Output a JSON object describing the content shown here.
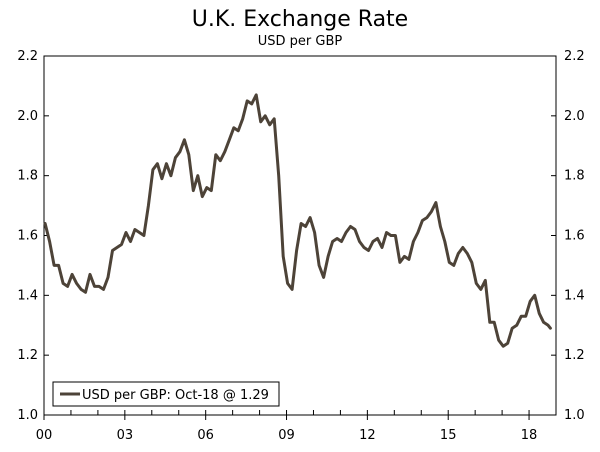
{
  "chart_data": {
    "type": "line",
    "title": "U.K. Exchange Rate",
    "subtitle": "USD per GBP",
    "xlabel": "",
    "ylabel": "",
    "x_tick_labels": [
      "00",
      "03",
      "06",
      "09",
      "12",
      "15",
      "18"
    ],
    "x_tick_years": [
      2000,
      2003,
      2006,
      2009,
      2012,
      2015,
      2018
    ],
    "xlim": [
      "2000-01",
      "2018-12"
    ],
    "ylim": [
      1.0,
      2.2
    ],
    "y_ticks": [
      1.0,
      1.2,
      1.4,
      1.6,
      1.8,
      2.0,
      2.2
    ],
    "y_tick_labels": [
      "1.0",
      "1.2",
      "1.4",
      "1.6",
      "1.8",
      "2.0",
      "2.2"
    ],
    "y_axis_both_sides": true,
    "grid": false,
    "legend_position": "bottom-left",
    "series": [
      {
        "name": "USD per GBP: Oct-18 @ 1.29",
        "color": "#4d4338",
        "points": [
          [
            "2000-01",
            1.64
          ],
          [
            "2000-03",
            1.58
          ],
          [
            "2000-05",
            1.5
          ],
          [
            "2000-07",
            1.5
          ],
          [
            "2000-09",
            1.44
          ],
          [
            "2000-11",
            1.43
          ],
          [
            "2001-01",
            1.47
          ],
          [
            "2001-03",
            1.44
          ],
          [
            "2001-05",
            1.42
          ],
          [
            "2001-07",
            1.41
          ],
          [
            "2001-09",
            1.47
          ],
          [
            "2001-11",
            1.43
          ],
          [
            "2002-01",
            1.43
          ],
          [
            "2002-03",
            1.42
          ],
          [
            "2002-05",
            1.46
          ],
          [
            "2002-07",
            1.55
          ],
          [
            "2002-09",
            1.56
          ],
          [
            "2002-11",
            1.57
          ],
          [
            "2003-01",
            1.61
          ],
          [
            "2003-03",
            1.58
          ],
          [
            "2003-05",
            1.62
          ],
          [
            "2003-07",
            1.61
          ],
          [
            "2003-09",
            1.6
          ],
          [
            "2003-11",
            1.7
          ],
          [
            "2004-01",
            1.82
          ],
          [
            "2004-03",
            1.84
          ],
          [
            "2004-05",
            1.79
          ],
          [
            "2004-07",
            1.84
          ],
          [
            "2004-09",
            1.8
          ],
          [
            "2004-11",
            1.86
          ],
          [
            "2005-01",
            1.88
          ],
          [
            "2005-03",
            1.92
          ],
          [
            "2005-05",
            1.87
          ],
          [
            "2005-07",
            1.75
          ],
          [
            "2005-09",
            1.8
          ],
          [
            "2005-11",
            1.73
          ],
          [
            "2006-01",
            1.76
          ],
          [
            "2006-03",
            1.75
          ],
          [
            "2006-05",
            1.87
          ],
          [
            "2006-07",
            1.85
          ],
          [
            "2006-09",
            1.88
          ],
          [
            "2006-11",
            1.92
          ],
          [
            "2007-01",
            1.96
          ],
          [
            "2007-03",
            1.95
          ],
          [
            "2007-05",
            1.99
          ],
          [
            "2007-07",
            2.05
          ],
          [
            "2007-09",
            2.04
          ],
          [
            "2007-11",
            2.07
          ],
          [
            "2008-01",
            1.98
          ],
          [
            "2008-03",
            2.0
          ],
          [
            "2008-05",
            1.97
          ],
          [
            "2008-07",
            1.99
          ],
          [
            "2008-09",
            1.8
          ],
          [
            "2008-11",
            1.53
          ],
          [
            "2009-01",
            1.44
          ],
          [
            "2009-03",
            1.42
          ],
          [
            "2009-05",
            1.55
          ],
          [
            "2009-07",
            1.64
          ],
          [
            "2009-09",
            1.63
          ],
          [
            "2009-11",
            1.66
          ],
          [
            "2010-01",
            1.61
          ],
          [
            "2010-03",
            1.5
          ],
          [
            "2010-05",
            1.46
          ],
          [
            "2010-07",
            1.53
          ],
          [
            "2010-09",
            1.58
          ],
          [
            "2010-11",
            1.59
          ],
          [
            "2011-01",
            1.58
          ],
          [
            "2011-03",
            1.61
          ],
          [
            "2011-05",
            1.63
          ],
          [
            "2011-07",
            1.62
          ],
          [
            "2011-09",
            1.58
          ],
          [
            "2011-11",
            1.56
          ],
          [
            "2012-01",
            1.55
          ],
          [
            "2012-03",
            1.58
          ],
          [
            "2012-05",
            1.59
          ],
          [
            "2012-07",
            1.56
          ],
          [
            "2012-09",
            1.61
          ],
          [
            "2012-11",
            1.6
          ],
          [
            "2013-01",
            1.6
          ],
          [
            "2013-03",
            1.51
          ],
          [
            "2013-05",
            1.53
          ],
          [
            "2013-07",
            1.52
          ],
          [
            "2013-09",
            1.58
          ],
          [
            "2013-11",
            1.61
          ],
          [
            "2014-01",
            1.65
          ],
          [
            "2014-03",
            1.66
          ],
          [
            "2014-05",
            1.68
          ],
          [
            "2014-07",
            1.71
          ],
          [
            "2014-09",
            1.63
          ],
          [
            "2014-11",
            1.58
          ],
          [
            "2015-01",
            1.51
          ],
          [
            "2015-03",
            1.5
          ],
          [
            "2015-05",
            1.54
          ],
          [
            "2015-07",
            1.56
          ],
          [
            "2015-09",
            1.54
          ],
          [
            "2015-11",
            1.51
          ],
          [
            "2016-01",
            1.44
          ],
          [
            "2016-03",
            1.42
          ],
          [
            "2016-05",
            1.45
          ],
          [
            "2016-07",
            1.31
          ],
          [
            "2016-09",
            1.31
          ],
          [
            "2016-11",
            1.25
          ],
          [
            "2017-01",
            1.23
          ],
          [
            "2017-03",
            1.24
          ],
          [
            "2017-05",
            1.29
          ],
          [
            "2017-07",
            1.3
          ],
          [
            "2017-09",
            1.33
          ],
          [
            "2017-11",
            1.33
          ],
          [
            "2018-01",
            1.38
          ],
          [
            "2018-03",
            1.4
          ],
          [
            "2018-05",
            1.34
          ],
          [
            "2018-07",
            1.31
          ],
          [
            "2018-09",
            1.3
          ],
          [
            "2018-10",
            1.29
          ]
        ]
      }
    ]
  }
}
